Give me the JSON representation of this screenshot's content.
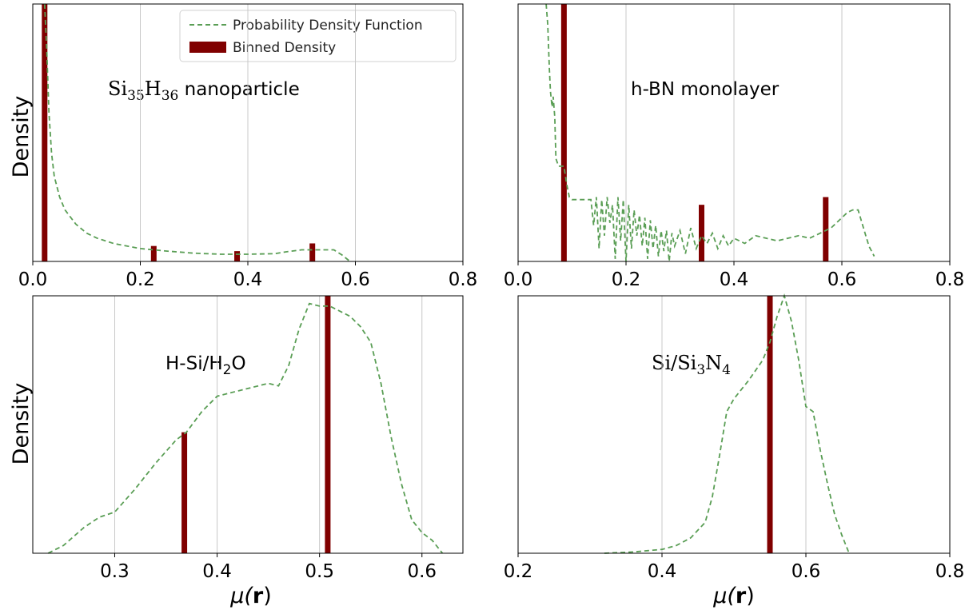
{
  "colors": {
    "pdf": "#5a9e55",
    "bar": "#800000",
    "grid": "#c8c8c8",
    "frame": "#000000"
  },
  "legend": {
    "pdf_label": "Probability Density Function",
    "bar_label": "Binned Density",
    "placement": "top-right"
  },
  "labels": {
    "density": "Density",
    "mu_prefix": "μ(",
    "mu_r": "r",
    "mu_suffix": ")"
  },
  "annotations": {
    "si35": {
      "pre": "Si",
      "sub1": "35",
      "mid": "H",
      "sub2": "36",
      "post": " nanoparticle"
    },
    "hbn": {
      "text": "h-BN monolayer"
    },
    "hsi": {
      "pre": "H-Si/H",
      "sub1": "2",
      "post": "O"
    },
    "si3n4": {
      "pre": "Si/Si",
      "sub1": "3",
      "mid": "N",
      "sub2": "4"
    }
  },
  "chart_data": [
    {
      "type": "bar+line",
      "annotation": "Si35H36 nanoparticle",
      "xlim": [
        0,
        0.8
      ],
      "xticks": [
        "0.0",
        "0.2",
        "0.4",
        "0.6",
        "0.8"
      ],
      "ylim": [
        0,
        1
      ],
      "grid": "vertical",
      "ylabel": "Density",
      "bars": {
        "x": [
          0.022,
          0.225,
          0.38,
          0.52
        ],
        "heights": [
          1.0,
          0.06,
          0.04,
          0.07
        ]
      },
      "pdf": {
        "x": [
          0.022,
          0.026,
          0.03,
          0.035,
          0.04,
          0.05,
          0.06,
          0.08,
          0.1,
          0.12,
          0.15,
          0.2,
          0.25,
          0.3,
          0.35,
          0.4,
          0.45,
          0.47,
          0.5,
          0.53,
          0.56,
          0.575,
          0.59
        ],
        "y": [
          1.0,
          0.82,
          0.58,
          0.42,
          0.33,
          0.25,
          0.2,
          0.145,
          0.11,
          0.09,
          0.07,
          0.05,
          0.04,
          0.032,
          0.028,
          0.028,
          0.03,
          0.037,
          0.045,
          0.045,
          0.045,
          0.025,
          0.0
        ]
      }
    },
    {
      "type": "bar+line",
      "annotation": "h-BN monolayer",
      "xlim": [
        0,
        0.8
      ],
      "xticks": [
        "0.0",
        "0.2",
        "0.4",
        "0.6",
        "0.8"
      ],
      "ylim": [
        0,
        1
      ],
      "grid": "vertical",
      "bars": {
        "x": [
          0.085,
          0.34,
          0.57
        ],
        "heights": [
          1.0,
          0.22,
          0.25
        ]
      },
      "pdf": {
        "x": [
          0.052,
          0.055,
          0.058,
          0.06,
          0.063,
          0.065,
          0.068,
          0.07,
          0.075,
          0.08,
          0.085,
          0.09,
          0.095,
          0.1,
          0.12,
          0.135,
          0.14,
          0.145,
          0.15,
          0.155,
          0.16,
          0.165,
          0.17,
          0.175,
          0.18,
          0.185,
          0.19,
          0.195,
          0.2,
          0.205,
          0.21,
          0.215,
          0.22,
          0.225,
          0.23,
          0.235,
          0.24,
          0.245,
          0.25,
          0.255,
          0.26,
          0.265,
          0.27,
          0.275,
          0.28,
          0.285,
          0.29,
          0.3,
          0.31,
          0.32,
          0.33,
          0.34,
          0.35,
          0.36,
          0.37,
          0.38,
          0.39,
          0.4,
          0.42,
          0.44,
          0.46,
          0.48,
          0.5,
          0.52,
          0.54,
          0.56,
          0.58,
          0.6,
          0.61,
          0.62,
          0.63,
          0.64,
          0.65,
          0.66
        ],
        "y": [
          1.0,
          0.92,
          0.75,
          0.66,
          0.6,
          0.64,
          0.56,
          0.4,
          0.37,
          0.37,
          0.37,
          0.3,
          0.25,
          0.24,
          0.24,
          0.24,
          0.14,
          0.25,
          0.05,
          0.24,
          0.1,
          0.25,
          0.15,
          0.22,
          0.01,
          0.25,
          0.08,
          0.24,
          0.0,
          0.22,
          0.05,
          0.2,
          0.1,
          0.18,
          0.06,
          0.17,
          0.01,
          0.16,
          0.05,
          0.14,
          0.02,
          0.12,
          0.04,
          0.12,
          0.0,
          0.11,
          0.06,
          0.12,
          0.03,
          0.13,
          0.05,
          0.1,
          0.07,
          0.11,
          0.05,
          0.1,
          0.06,
          0.09,
          0.07,
          0.1,
          0.09,
          0.08,
          0.09,
          0.1,
          0.09,
          0.11,
          0.13,
          0.17,
          0.19,
          0.2,
          0.2,
          0.13,
          0.06,
          0.02
        ]
      }
    },
    {
      "type": "bar+line",
      "annotation": "H-Si/H2O",
      "xlim": [
        0.22,
        0.64
      ],
      "xticks": [
        "0.3",
        "0.4",
        "0.5",
        "0.6"
      ],
      "xtick_values": [
        0.3,
        0.4,
        0.5,
        0.6
      ],
      "ylim": [
        0,
        1
      ],
      "grid": "vertical",
      "xlabel": "μ(r)",
      "ylabel": "Density",
      "bars": {
        "x": [
          0.368,
          0.508
        ],
        "heights": [
          0.47,
          1.0
        ]
      },
      "pdf": {
        "x": [
          0.235,
          0.25,
          0.27,
          0.285,
          0.3,
          0.32,
          0.34,
          0.36,
          0.37,
          0.385,
          0.4,
          0.42,
          0.44,
          0.45,
          0.46,
          0.47,
          0.48,
          0.49,
          0.5,
          0.51,
          0.52,
          0.53,
          0.54,
          0.55,
          0.56,
          0.57,
          0.58,
          0.59,
          0.6,
          0.61,
          0.62
        ],
        "y": [
          0.0,
          0.03,
          0.1,
          0.14,
          0.16,
          0.25,
          0.35,
          0.44,
          0.47,
          0.55,
          0.61,
          0.63,
          0.65,
          0.66,
          0.65,
          0.73,
          0.87,
          0.97,
          0.96,
          0.96,
          0.94,
          0.92,
          0.88,
          0.82,
          0.66,
          0.45,
          0.27,
          0.13,
          0.08,
          0.05,
          0.0
        ]
      }
    },
    {
      "type": "bar+line",
      "annotation": "Si/Si3N4",
      "xlim": [
        0.2,
        0.8
      ],
      "xticks": [
        "0.2",
        "0.4",
        "0.6",
        "0.8"
      ],
      "ylim": [
        0,
        1
      ],
      "grid": "vertical",
      "xlabel": "μ(r)",
      "bars": {
        "x": [
          0.55
        ],
        "heights": [
          1.0
        ]
      },
      "pdf": {
        "x": [
          0.32,
          0.36,
          0.38,
          0.4,
          0.42,
          0.44,
          0.46,
          0.47,
          0.48,
          0.49,
          0.5,
          0.52,
          0.54,
          0.55,
          0.56,
          0.57,
          0.58,
          0.59,
          0.6,
          0.61,
          0.62,
          0.63,
          0.64,
          0.65,
          0.66
        ],
        "y": [
          0.0,
          0.005,
          0.01,
          0.015,
          0.03,
          0.06,
          0.12,
          0.22,
          0.38,
          0.55,
          0.6,
          0.67,
          0.75,
          0.82,
          0.92,
          1.0,
          0.9,
          0.75,
          0.57,
          0.55,
          0.4,
          0.27,
          0.15,
          0.07,
          0.0
        ]
      }
    }
  ]
}
